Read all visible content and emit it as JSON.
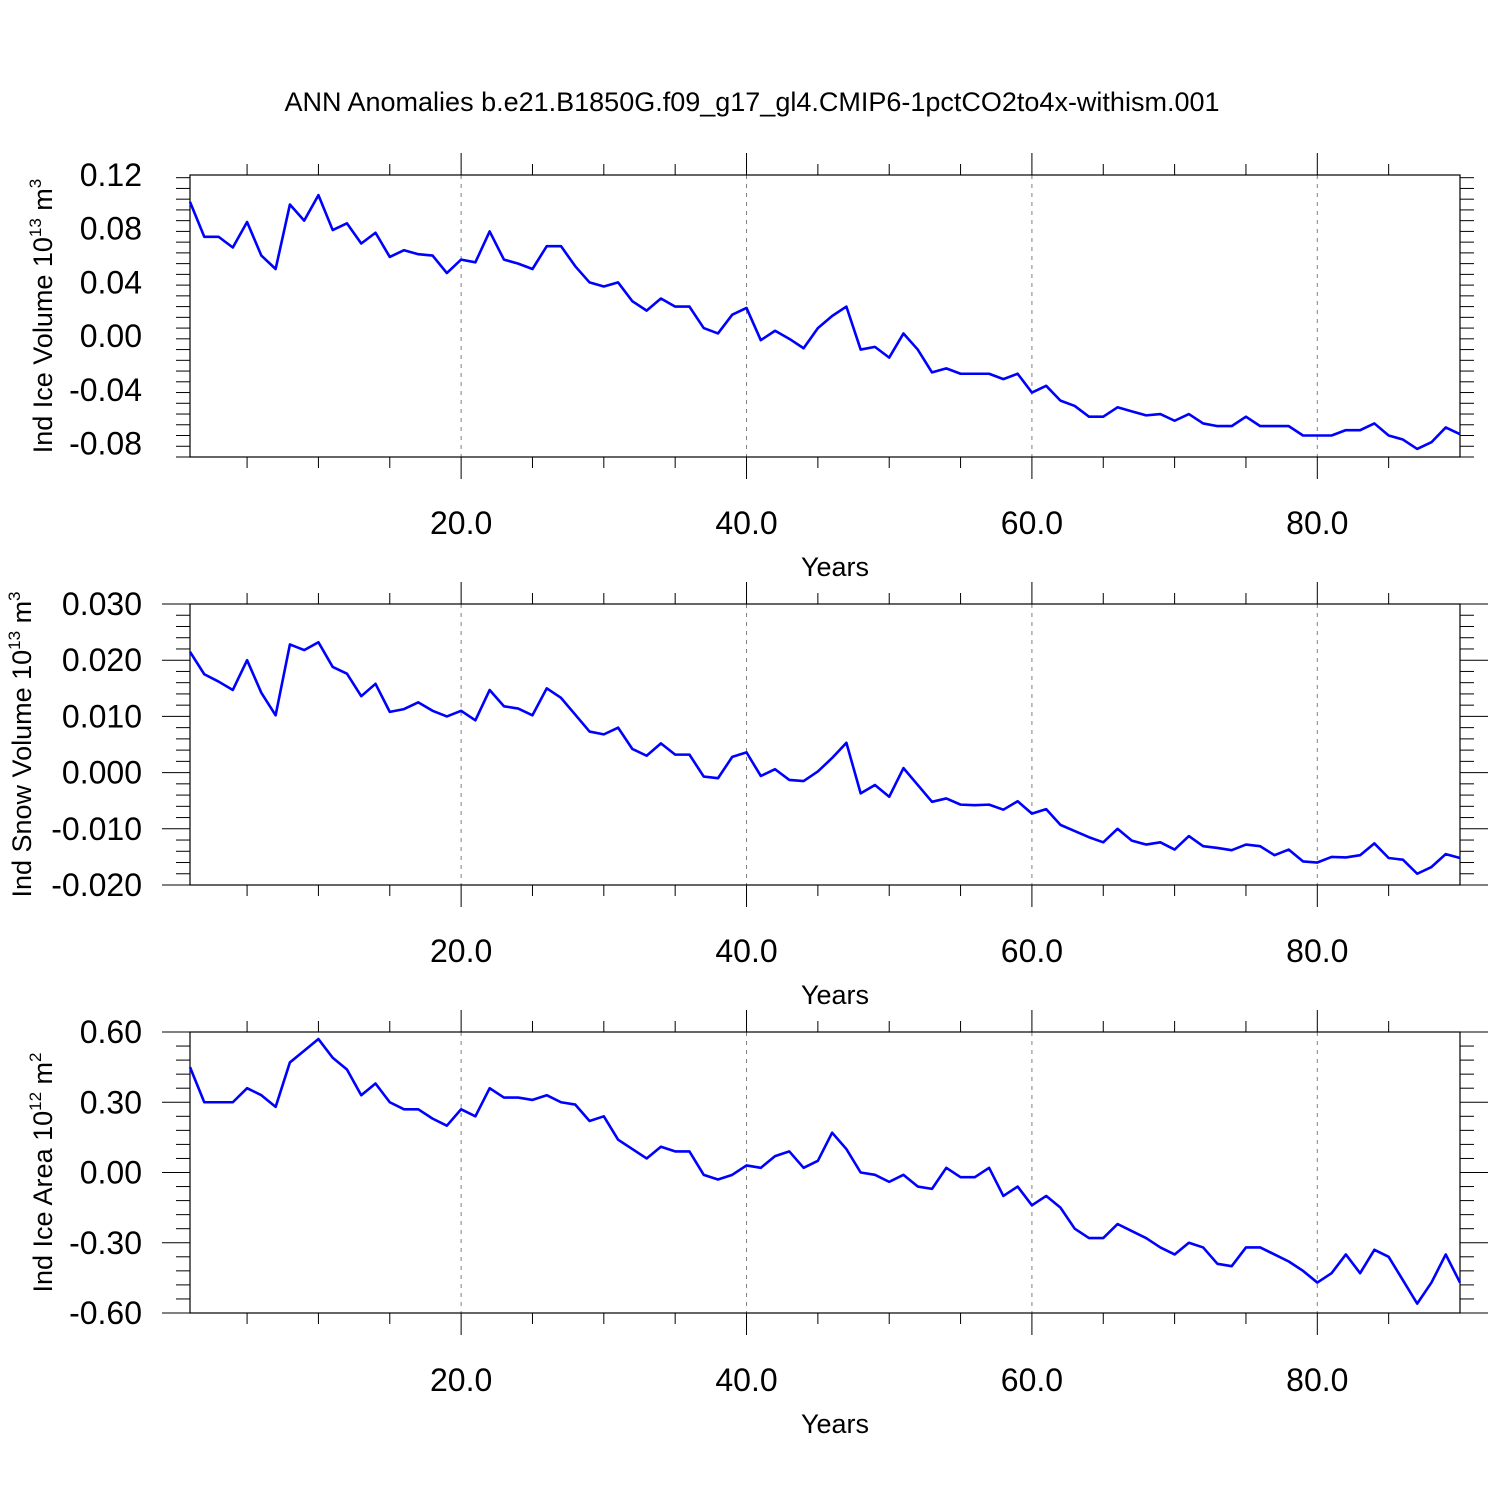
{
  "title": "ANN Anomalies b.e21.B1850G.f09_g17_gl4.CMIP6-1pctCO2to4x-withism.001",
  "colors": {
    "line": "#0000ff",
    "axis": "#000000",
    "grid": "#808080"
  },
  "chart_data": [
    {
      "type": "line",
      "xlabel": "Years",
      "ylabel": {
        "text": "Ind Ice Volume 10",
        "exponent": "13",
        "unit": "m",
        "unit_exponent": "3"
      },
      "xlim": [
        1,
        90
      ],
      "ylim": [
        -0.09,
        0.12
      ],
      "x_ticks": [
        20,
        40,
        60,
        80
      ],
      "x_tick_labels": [
        "20.0",
        "40.0",
        "60.0",
        "80.0"
      ],
      "y_ticks": [
        0.12,
        0.08,
        0.04,
        0.0,
        -0.04,
        -0.08
      ],
      "y_tick_labels": [
        "0.12",
        "0.08",
        "0.04",
        "0.00",
        "-0.04",
        "-0.08"
      ],
      "grid": "dashed vertical lines at x major ticks",
      "series": [
        {
          "x_start": 1,
          "values": [
            0.1,
            0.074,
            0.074,
            0.066,
            0.085,
            0.06,
            0.05,
            0.098,
            0.086,
            0.105,
            0.079,
            0.084,
            0.069,
            0.077,
            0.059,
            0.064,
            0.061,
            0.06,
            0.047,
            0.057,
            0.055,
            0.078,
            0.057,
            0.054,
            0.05,
            0.067,
            0.067,
            0.052,
            0.04,
            0.037,
            0.04,
            0.026,
            0.019,
            0.028,
            0.022,
            0.022,
            0.006,
            0.002,
            0.016,
            0.021,
            -0.003,
            0.004,
            -0.002,
            -0.009,
            0.006,
            0.015,
            0.022,
            -0.01,
            -0.008,
            -0.016,
            0.002,
            -0.01,
            -0.027,
            -0.024,
            -0.028,
            -0.028,
            -0.028,
            -0.032,
            -0.028,
            -0.042,
            -0.037,
            -0.048,
            -0.052,
            -0.06,
            -0.06,
            -0.053,
            -0.056,
            -0.059,
            -0.058,
            -0.063,
            -0.058,
            -0.065,
            -0.067,
            -0.067,
            -0.06,
            -0.067,
            -0.067,
            -0.067,
            -0.074,
            -0.074,
            -0.074,
            -0.07,
            -0.07,
            -0.065,
            -0.074,
            -0.077,
            -0.084,
            -0.079,
            -0.068,
            -0.073
          ]
        }
      ]
    },
    {
      "type": "line",
      "xlabel": "Years",
      "ylabel": {
        "text": "Ind Snow Volume 10",
        "exponent": "13",
        "unit": "m",
        "unit_exponent": "3"
      },
      "xlim": [
        1,
        90
      ],
      "ylim": [
        -0.02,
        0.03
      ],
      "x_ticks": [
        20,
        40,
        60,
        80
      ],
      "x_tick_labels": [
        "20.0",
        "40.0",
        "60.0",
        "80.0"
      ],
      "y_ticks": [
        0.03,
        0.02,
        0.01,
        0.0,
        -0.01,
        -0.02
      ],
      "y_tick_labels": [
        "0.030",
        "0.020",
        "0.010",
        "0.000",
        "-0.010",
        "-0.020"
      ],
      "grid": "dashed vertical lines at x major ticks",
      "series": [
        {
          "x_start": 1,
          "values": [
            0.0215,
            0.0175,
            0.0162,
            0.0147,
            0.02,
            0.0142,
            0.0102,
            0.0228,
            0.0218,
            0.0232,
            0.0188,
            0.0176,
            0.0136,
            0.0158,
            0.0108,
            0.0113,
            0.0125,
            0.011,
            0.01,
            0.011,
            0.0093,
            0.0147,
            0.0118,
            0.0114,
            0.0102,
            0.015,
            0.0133,
            0.0103,
            0.0073,
            0.0068,
            0.008,
            0.0042,
            0.003,
            0.0052,
            0.0032,
            0.0032,
            -0.0007,
            -0.001,
            0.0028,
            0.0036,
            -0.0006,
            0.0006,
            -0.0013,
            -0.0015,
            0.0002,
            0.0026,
            0.0053,
            -0.0037,
            -0.0022,
            -0.0043,
            0.0008,
            -0.0022,
            -0.0052,
            -0.0046,
            -0.0057,
            -0.0058,
            -0.0057,
            -0.0066,
            -0.0051,
            -0.0073,
            -0.0065,
            -0.0093,
            -0.0104,
            -0.0115,
            -0.0124,
            -0.01,
            -0.0121,
            -0.0128,
            -0.0124,
            -0.0137,
            -0.0113,
            -0.0131,
            -0.0134,
            -0.0138,
            -0.0128,
            -0.0131,
            -0.0147,
            -0.0137,
            -0.0158,
            -0.016,
            -0.015,
            -0.0151,
            -0.0147,
            -0.0126,
            -0.0152,
            -0.0155,
            -0.018,
            -0.0168,
            -0.0145,
            -0.0152
          ]
        }
      ]
    },
    {
      "type": "line",
      "xlabel": "Years",
      "ylabel": {
        "text": "Ind Ice Area 10",
        "exponent": "12",
        "unit": "m",
        "unit_exponent": "2"
      },
      "xlim": [
        1,
        90
      ],
      "ylim": [
        -0.6,
        0.6
      ],
      "x_ticks": [
        20,
        40,
        60,
        80
      ],
      "x_tick_labels": [
        "20.0",
        "40.0",
        "60.0",
        "80.0"
      ],
      "y_ticks": [
        0.6,
        0.3,
        0.0,
        -0.3,
        -0.6
      ],
      "y_tick_labels": [
        "0.60",
        "0.30",
        "0.00",
        "-0.30",
        "-0.60"
      ],
      "grid": "dashed vertical lines at x major ticks",
      "series": [
        {
          "x_start": 1,
          "values": [
            0.45,
            0.3,
            0.3,
            0.3,
            0.36,
            0.33,
            0.28,
            0.47,
            0.52,
            0.57,
            0.49,
            0.44,
            0.33,
            0.38,
            0.3,
            0.27,
            0.27,
            0.23,
            0.2,
            0.27,
            0.24,
            0.36,
            0.32,
            0.32,
            0.31,
            0.33,
            0.3,
            0.29,
            0.22,
            0.24,
            0.14,
            0.1,
            0.06,
            0.11,
            0.09,
            0.09,
            -0.01,
            -0.03,
            -0.01,
            0.03,
            0.02,
            0.07,
            0.09,
            0.02,
            0.05,
            0.17,
            0.1,
            0.0,
            -0.01,
            -0.04,
            -0.01,
            -0.06,
            -0.07,
            0.02,
            -0.02,
            -0.02,
            0.02,
            -0.1,
            -0.06,
            -0.14,
            -0.1,
            -0.15,
            -0.24,
            -0.28,
            -0.28,
            -0.22,
            -0.25,
            -0.28,
            -0.32,
            -0.35,
            -0.3,
            -0.32,
            -0.39,
            -0.4,
            -0.32,
            -0.32,
            -0.35,
            -0.38,
            -0.42,
            -0.47,
            -0.43,
            -0.35,
            -0.43,
            -0.33,
            -0.36,
            -0.46,
            -0.56,
            -0.47,
            -0.35,
            -0.47
          ]
        }
      ]
    }
  ]
}
